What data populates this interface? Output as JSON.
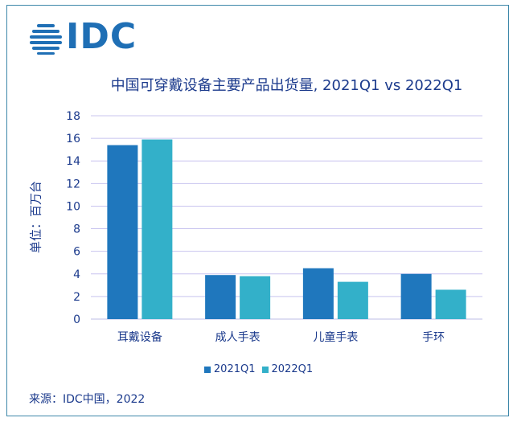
{
  "brand": {
    "logo_text": "IDC",
    "logo_color": "#1f6fb5"
  },
  "chart_data": {
    "type": "bar",
    "title": "中国可穿戴设备主要产品出货量, 2021Q1 vs 2022Q1",
    "ylabel": "单位：百万台",
    "xlabel": "",
    "ylim": [
      0,
      18
    ],
    "yticks": [
      0,
      2,
      4,
      6,
      8,
      10,
      12,
      14,
      16,
      18
    ],
    "grid": true,
    "legend_position": "bottom",
    "categories": [
      "耳戴设备",
      "成人手表",
      "儿童手表",
      "手环"
    ],
    "series": [
      {
        "name": "2021Q1",
        "color": "#1f77bd",
        "values": [
          15.4,
          3.9,
          4.5,
          4.0
        ]
      },
      {
        "name": "2022Q1",
        "color": "#33b0c9",
        "values": [
          15.9,
          3.8,
          3.3,
          2.6
        ]
      }
    ]
  },
  "source": "来源：IDC中国，2022"
}
